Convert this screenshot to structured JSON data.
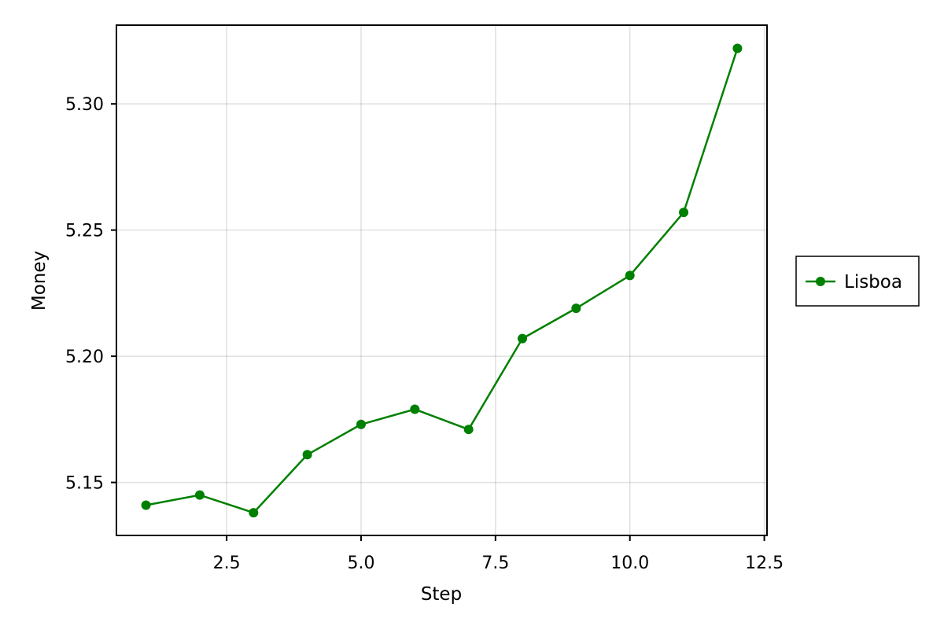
{
  "chart_data": {
    "type": "line",
    "xlabel": "Step",
    "ylabel": "Money",
    "xlim": [
      0.45,
      12.55
    ],
    "ylim": [
      5.129,
      5.3312
    ],
    "xticks": [
      2.5,
      5.0,
      7.5,
      10.0,
      12.5
    ],
    "xtick_labels": [
      "2.5",
      "5.0",
      "7.5",
      "10.0",
      "12.5"
    ],
    "yticks": [
      5.15,
      5.2,
      5.25,
      5.3
    ],
    "ytick_labels": [
      "5.15",
      "5.20",
      "5.25",
      "5.30"
    ],
    "grid": true,
    "legend_position": "right",
    "series": [
      {
        "name": "Lisboa",
        "color": "#008000",
        "marker": "circle",
        "x": [
          1,
          2,
          3,
          4,
          5,
          6,
          7,
          8,
          9,
          10,
          11,
          12
        ],
        "y": [
          5.141,
          5.145,
          5.138,
          5.161,
          5.173,
          5.179,
          5.171,
          5.207,
          5.219,
          5.232,
          5.257,
          5.322
        ]
      }
    ]
  }
}
